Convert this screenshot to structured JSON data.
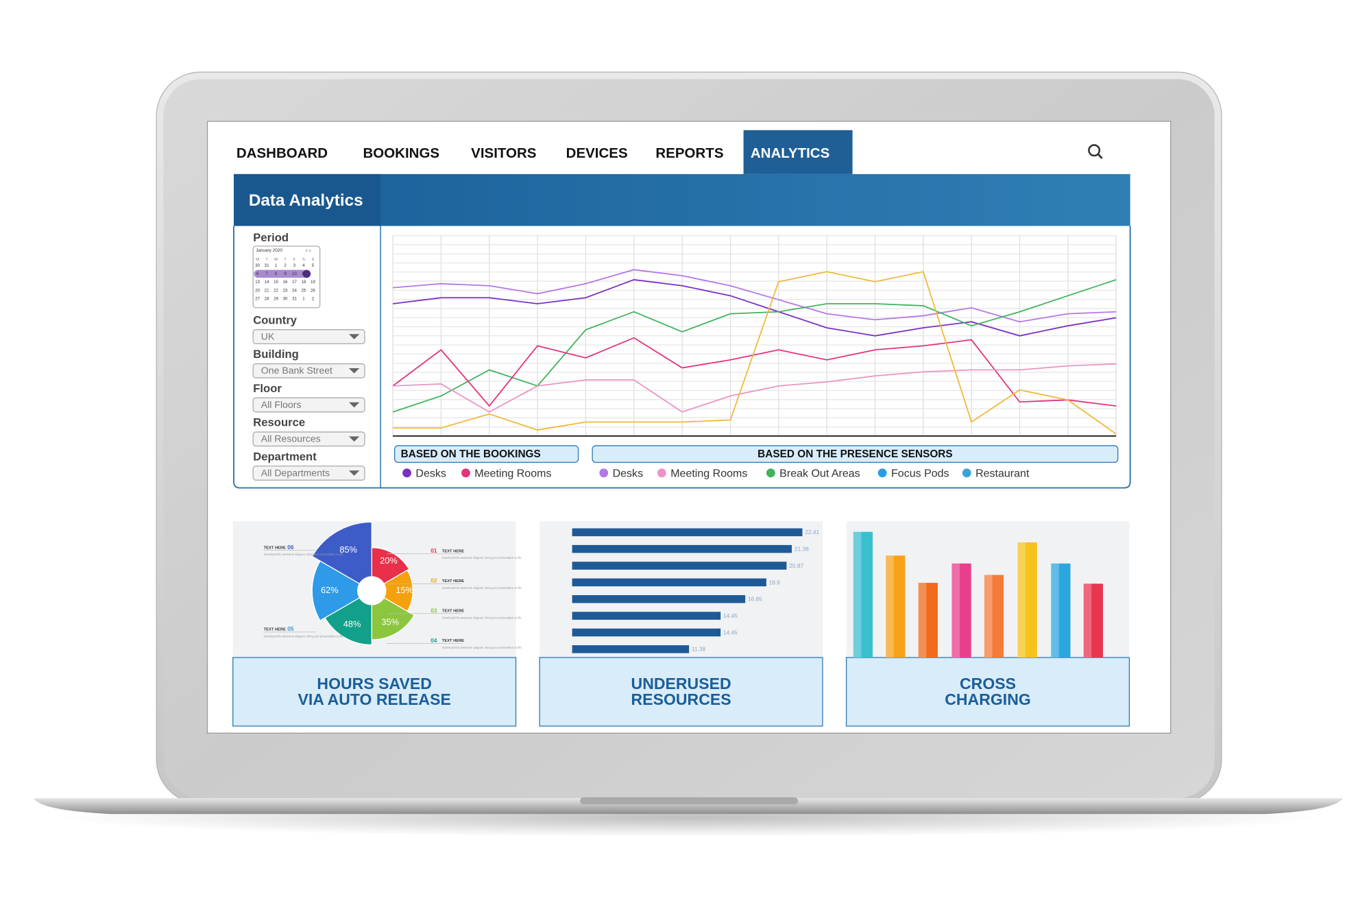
{
  "nav": {
    "items": [
      "DASHBOARD",
      "BOOKINGS",
      "VISITORS",
      "DEVICES",
      "REPORTS",
      "ANALYTICS"
    ]
  },
  "panel": {
    "title": "Data Analytics"
  },
  "filters": {
    "period_label": "Period",
    "calendar": {
      "month": "January 2020",
      "weekdays": [
        "M",
        "T",
        "W",
        "T",
        "F",
        "S",
        "S"
      ],
      "weeks": [
        [
          30,
          31,
          1,
          2,
          3,
          4,
          5
        ],
        [
          6,
          7,
          8,
          9,
          10,
          11,
          12
        ],
        [
          13,
          14,
          15,
          16,
          17,
          18,
          19
        ],
        [
          20,
          21,
          22,
          23,
          24,
          25,
          26
        ],
        [
          27,
          28,
          29,
          30,
          31,
          1,
          2
        ]
      ]
    },
    "fields": [
      {
        "label": "Country",
        "value": "UK"
      },
      {
        "label": "Building",
        "value": "One Bank Street"
      },
      {
        "label": "Floor",
        "value": "All Floors"
      },
      {
        "label": "Resource",
        "value": "All Resources"
      },
      {
        "label": "Department",
        "value": "All Departments"
      }
    ]
  },
  "chart_data": [
    {
      "type": "line",
      "grid": true,
      "series": [
        {
          "color": "#b377e6",
          "values": [
            74,
            76,
            75,
            71,
            76,
            83,
            80,
            75,
            68,
            61,
            58,
            60,
            64,
            57,
            61,
            62
          ]
        },
        {
          "color": "#7b2fc4",
          "values": [
            66,
            69,
            69,
            66,
            69,
            78,
            75,
            70,
            62,
            54,
            50,
            54,
            57,
            50,
            55,
            59
          ]
        },
        {
          "color": "#3fb45c",
          "values": [
            12,
            20,
            33,
            25,
            53,
            62,
            52,
            61,
            62,
            66,
            66,
            65,
            55,
            62,
            70,
            78
          ]
        },
        {
          "color": "#e2337d",
          "values": [
            25,
            43,
            15,
            45,
            39,
            49,
            34,
            38,
            43,
            38,
            43,
            45,
            48,
            17,
            18,
            15
          ]
        },
        {
          "color": "#ea93c6",
          "values": [
            25,
            26,
            12,
            25,
            28,
            28,
            12,
            20,
            25,
            27,
            30,
            32,
            33,
            33,
            35,
            36
          ]
        },
        {
          "color": "#f0b83a",
          "values": [
            4,
            4,
            11,
            3,
            7,
            7,
            7,
            8,
            77,
            82,
            77,
            82,
            7,
            23,
            18,
            1
          ]
        }
      ],
      "legend_groups": [
        {
          "title": "BASED ON THE BOOKINGS",
          "items": [
            {
              "name": "Desks",
              "color": "#7b2fc4"
            },
            {
              "name": "Meeting Rooms",
              "color": "#e2337d"
            }
          ]
        },
        {
          "title": "BASED ON THE PRESENCE SENSORS",
          "items": [
            {
              "name": "Desks",
              "color": "#b377e6"
            },
            {
              "name": "Meeting Rooms",
              "color": "#ea93c6"
            },
            {
              "name": "Break Out Areas",
              "color": "#3fb45c"
            },
            {
              "name": "Focus Pods",
              "color": "#2a9de0"
            },
            {
              "name": "Restaurant",
              "color": "#3aa3d6"
            }
          ]
        }
      ]
    },
    {
      "type": "pie",
      "values": [
        20,
        15,
        35,
        48,
        62,
        85
      ],
      "value_labels": [
        "20%",
        "15%",
        "35%",
        "48%",
        "62%",
        "85%"
      ],
      "colors": [
        "#e8304a",
        "#f5a10d",
        "#8cc63f",
        "#13a08a",
        "#2e9ae8",
        "#3e5cc8"
      ],
      "callouts": [
        {
          "text": "TEXT HERE",
          "number": "01",
          "color": "#e8304a"
        },
        {
          "text": "TEXT HERE",
          "number": "02",
          "color": "#f5a10d"
        },
        {
          "text": "TEXT HERE",
          "number": "03",
          "color": "#8cc63f"
        },
        {
          "text": "TEXT HERE",
          "number": "04",
          "color": "#13a08a"
        },
        {
          "text": "TEXT HERE",
          "number": "05",
          "color": "#2e9ae8"
        },
        {
          "text": "TEXT HERE",
          "number": "06",
          "color": "#3e5cc8"
        }
      ],
      "callout_note": "Download this awesome diagram. Bring your presentation to life."
    },
    {
      "type": "hbar",
      "color": "#1f5a96",
      "values": [
        22.41,
        21.38,
        20.87,
        18.9,
        16.85,
        14.45,
        14.45,
        11.38
      ]
    },
    {
      "type": "bar",
      "values": [
        143,
        116,
        85,
        107,
        94,
        131,
        107,
        84
      ],
      "colors": [
        "#3bbfcf",
        "#f7a21b",
        "#f26b1d",
        "#e83e8c",
        "#f47c3a",
        "#f6c21c",
        "#2ca6df",
        "#e8364f"
      ]
    }
  ],
  "cards": [
    {
      "title": [
        "HOURS SAVED",
        "VIA AUTO RELEASE"
      ]
    },
    {
      "title": [
        "UNDERUSED",
        "RESOURCES"
      ]
    },
    {
      "title": [
        "CROSS",
        "CHARGING"
      ]
    }
  ]
}
